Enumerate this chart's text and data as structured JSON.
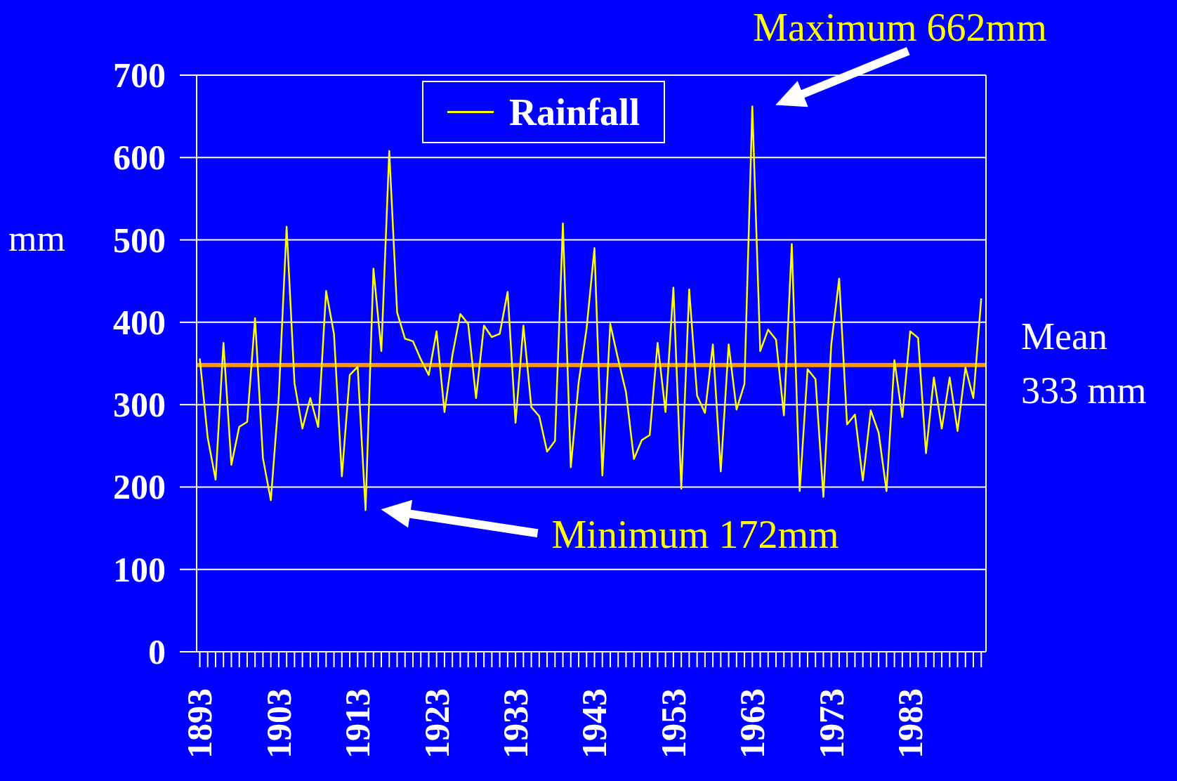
{
  "chart_data": {
    "type": "line",
    "ylabel": "mm",
    "categories": [
      "1893",
      null,
      null,
      null,
      null,
      null,
      null,
      null,
      null,
      null,
      "1903",
      null,
      null,
      null,
      null,
      null,
      null,
      null,
      null,
      null,
      "1913",
      null,
      null,
      null,
      null,
      null,
      null,
      null,
      null,
      null,
      "1923",
      null,
      null,
      null,
      null,
      null,
      null,
      null,
      null,
      null,
      "1933",
      null,
      null,
      null,
      null,
      null,
      null,
      null,
      null,
      null,
      "1943",
      null,
      null,
      null,
      null,
      null,
      null,
      null,
      null,
      null,
      "1953",
      null,
      null,
      null,
      null,
      null,
      null,
      null,
      null,
      null,
      "1963",
      null,
      null,
      null,
      null,
      null,
      null,
      null,
      null,
      null,
      "1973",
      null,
      null,
      null,
      null,
      null,
      null,
      null,
      null,
      null,
      "1983",
      null,
      null,
      null,
      null,
      null,
      null,
      null,
      null,
      null
    ],
    "series": [
      {
        "name": "Rainfall",
        "color": "#ffff00",
        "values": [
          356,
          260,
          209,
          375,
          227,
          273,
          279,
          405,
          235,
          184,
          309,
          516,
          326,
          271,
          308,
          273,
          438,
          386,
          213,
          336,
          346,
          172,
          465,
          365,
          608,
          412,
          380,
          377,
          355,
          336,
          389,
          291,
          360,
          410,
          398,
          308,
          396,
          382,
          386,
          437,
          278,
          396,
          297,
          286,
          243,
          256,
          520,
          224,
          327,
          392,
          490,
          214,
          398,
          355,
          315,
          234,
          257,
          263,
          375,
          291,
          442,
          198,
          440,
          311,
          290,
          373,
          219,
          373,
          294,
          325,
          662,
          365,
          391,
          379,
          287,
          495,
          195,
          343,
          331,
          188,
          373,
          453,
          276,
          288,
          208,
          293,
          266,
          195,
          354,
          285,
          389,
          381,
          241,
          333,
          271,
          333,
          268,
          345,
          308,
          429
        ]
      }
    ],
    "ylim": [
      0,
      700
    ],
    "yticks": [
      0,
      100,
      200,
      300,
      400,
      500,
      600,
      700
    ],
    "grid": "y",
    "legend": "top",
    "ref_lines": [
      {
        "axis": "y",
        "value": 348,
        "label": "Mean\n333 mm",
        "color": "#ff9900"
      }
    ],
    "annotations": [
      {
        "text": "Maximum 662mm",
        "x": "1963",
        "y": 662
      },
      "Minimum 172mm"
    ]
  }
}
